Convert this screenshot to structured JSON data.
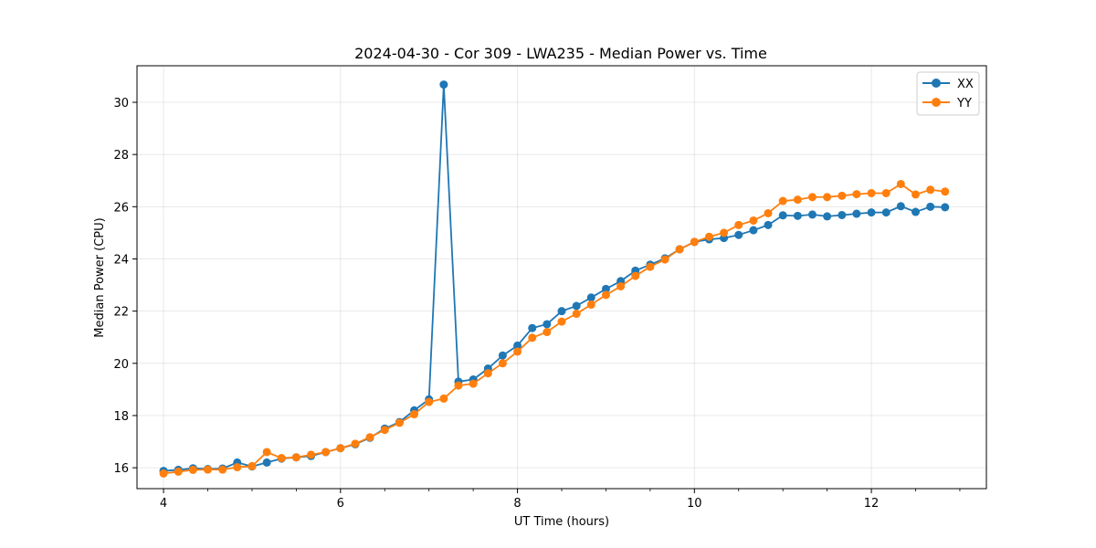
{
  "chart_data": {
    "type": "line",
    "title": "2024-04-30 - Cor 309 - LWA235 - Median Power vs. Time",
    "xlabel": "UT Time (hours)",
    "ylabel": "Median Power (CPU)",
    "xlim": [
      3.7,
      13.3
    ],
    "ylim": [
      15.2,
      31.4
    ],
    "xticks": [
      4,
      6,
      8,
      10,
      12
    ],
    "xtick_labels": [
      "4",
      "6",
      "8",
      "10",
      "12"
    ],
    "x_minor_step": 0.5,
    "yticks": [
      16,
      18,
      20,
      22,
      24,
      26,
      28,
      30
    ],
    "ytick_labels": [
      "16",
      "18",
      "20",
      "22",
      "24",
      "26",
      "28",
      "30"
    ],
    "grid": true,
    "legend_position": "top-right",
    "x": [
      4.0,
      4.167,
      4.333,
      4.5,
      4.667,
      4.833,
      5.0,
      5.167,
      5.333,
      5.5,
      5.667,
      5.833,
      6.0,
      6.167,
      6.333,
      6.5,
      6.667,
      6.833,
      7.0,
      7.167,
      7.333,
      7.5,
      7.667,
      7.833,
      8.0,
      8.167,
      8.333,
      8.5,
      8.667,
      8.833,
      9.0,
      9.167,
      9.333,
      9.5,
      9.667,
      9.833,
      10.0,
      10.167,
      10.333,
      10.5,
      10.667,
      10.833,
      11.0,
      11.167,
      11.333,
      11.5,
      11.667,
      11.833,
      12.0,
      12.167,
      12.333,
      12.5,
      12.667,
      12.833
    ],
    "series": [
      {
        "name": "XX",
        "color": "#1f77b4",
        "values": [
          15.88,
          15.92,
          15.98,
          15.95,
          15.97,
          16.2,
          16.05,
          16.2,
          16.35,
          16.4,
          16.45,
          16.6,
          16.75,
          16.9,
          17.15,
          17.5,
          17.75,
          18.2,
          18.62,
          30.68,
          19.3,
          19.38,
          19.8,
          20.3,
          20.68,
          21.35,
          21.5,
          22.0,
          22.2,
          22.52,
          22.85,
          23.15,
          23.55,
          23.78,
          24.02,
          24.37,
          24.65,
          24.75,
          24.8,
          24.92,
          25.1,
          25.3,
          25.67,
          25.65,
          25.7,
          25.63,
          25.68,
          25.73,
          25.78,
          25.78,
          26.02,
          25.8,
          26.0,
          25.98
        ]
      },
      {
        "name": "YY",
        "color": "#ff7f0e",
        "values": [
          15.78,
          15.85,
          15.92,
          15.93,
          15.93,
          16.02,
          16.06,
          16.6,
          16.37,
          16.4,
          16.5,
          16.6,
          16.75,
          16.92,
          17.17,
          17.45,
          17.72,
          18.05,
          18.52,
          18.65,
          19.15,
          19.22,
          19.62,
          20.0,
          20.45,
          20.98,
          21.2,
          21.6,
          21.9,
          22.25,
          22.62,
          22.95,
          23.35,
          23.7,
          23.98,
          24.37,
          24.65,
          24.85,
          25.0,
          25.3,
          25.47,
          25.75,
          26.22,
          26.27,
          26.37,
          26.37,
          26.42,
          26.48,
          26.52,
          26.52,
          26.87,
          26.47,
          26.65,
          26.58
        ]
      }
    ]
  }
}
